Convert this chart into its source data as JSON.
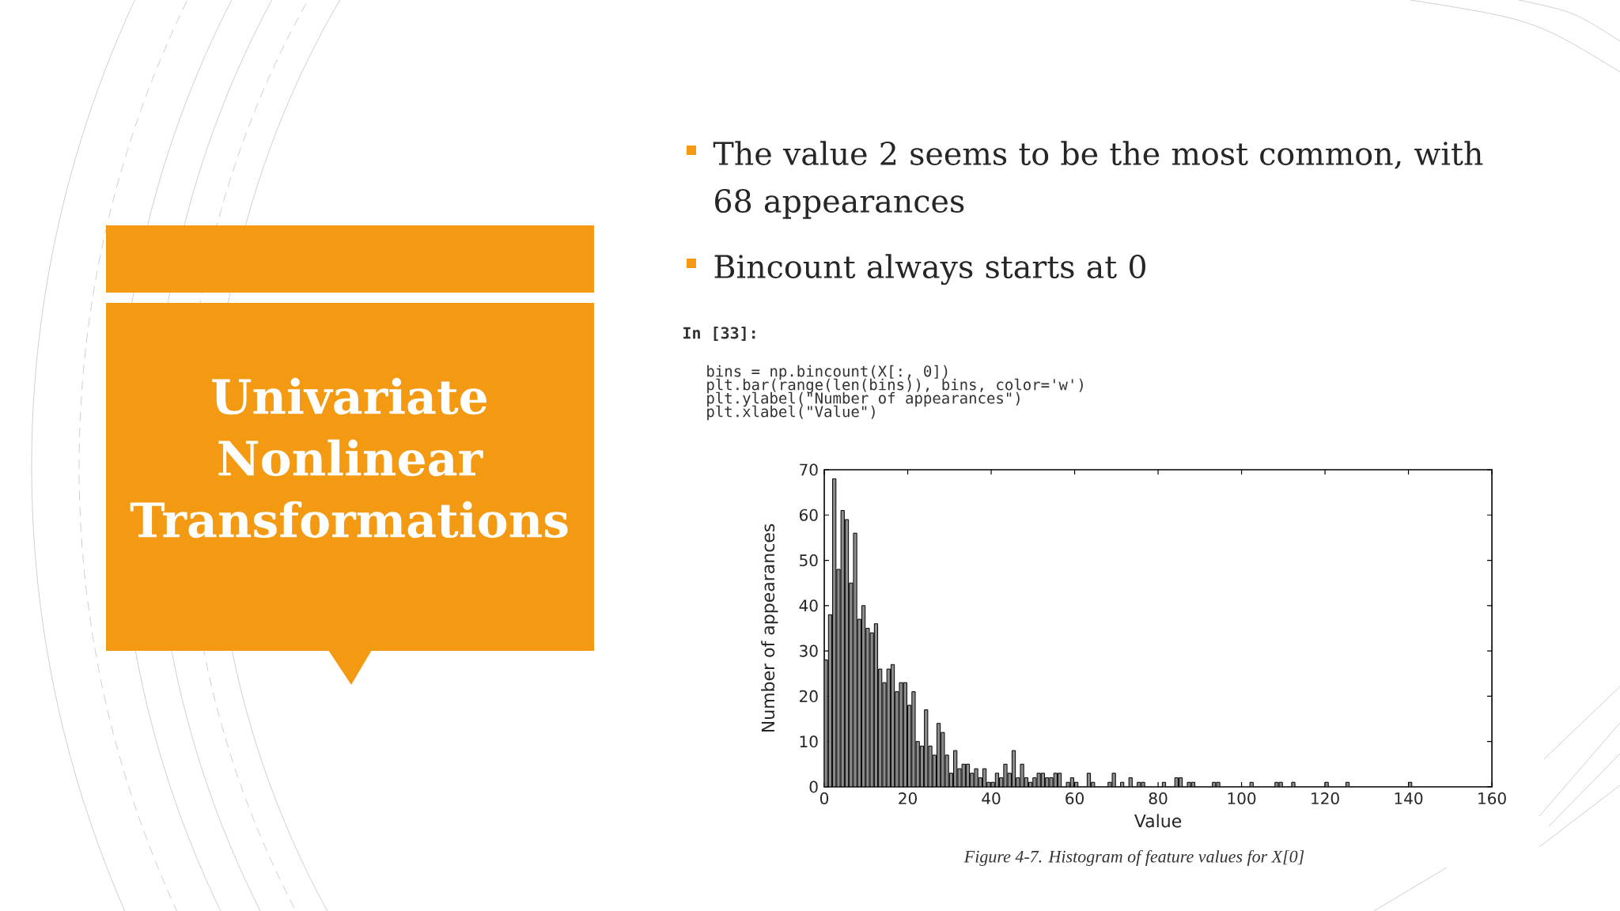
{
  "chart_data": {
    "type": "bar",
    "title": "Univariate Nonlinear Transformations",
    "xlabel": "Value",
    "ylabel": "Number of appearances",
    "color": "#8c8c8c",
    "x": [
      0,
      1,
      2,
      3,
      4,
      5,
      6,
      7,
      8,
      9,
      10,
      11,
      12,
      13,
      14,
      15,
      16,
      17,
      18,
      19,
      20,
      21,
      22,
      23,
      24,
      25,
      26,
      27,
      28,
      29,
      30,
      31,
      32,
      33,
      34,
      35,
      36,
      37,
      38,
      39,
      40,
      41,
      42,
      43,
      44,
      45,
      46,
      47,
      48,
      49,
      50,
      51,
      52,
      53,
      54,
      55,
      56,
      57,
      58,
      59,
      60,
      61,
      62,
      63,
      64,
      65,
      66,
      67,
      68,
      69,
      70,
      71,
      72,
      73,
      74,
      75,
      76,
      77,
      78,
      79,
      80,
      81,
      82,
      83,
      84,
      85,
      86,
      87,
      88,
      89,
      90,
      91,
      92,
      93,
      94,
      95,
      96,
      97,
      98,
      99,
      100,
      101,
      102,
      103,
      104,
      105,
      106,
      107,
      108,
      109,
      110,
      111,
      112,
      113,
      114,
      115,
      116,
      117,
      118,
      119,
      120,
      121,
      122,
      123,
      124,
      125,
      126,
      127,
      128,
      129,
      130,
      131,
      132,
      133,
      134,
      135,
      136,
      137,
      138,
      139,
      140
    ],
    "values": [
      28,
      38,
      68,
      48,
      61,
      59,
      45,
      56,
      37,
      40,
      35,
      34,
      36,
      26,
      23,
      26,
      27,
      21,
      23,
      23,
      18,
      21,
      10,
      9,
      17,
      9,
      7,
      14,
      12,
      7,
      3,
      8,
      4,
      5,
      5,
      3,
      4,
      2,
      4,
      1,
      1,
      3,
      2,
      5,
      3,
      8,
      2,
      5,
      2,
      1,
      2,
      3,
      3,
      2,
      2,
      3,
      3,
      0,
      1,
      2,
      1,
      0,
      0,
      3,
      1,
      0,
      0,
      0,
      1,
      3,
      0,
      1,
      0,
      2,
      0,
      1,
      1,
      0,
      0,
      0,
      0,
      1,
      0,
      0,
      2,
      2,
      0,
      1,
      1,
      0,
      0,
      0,
      0,
      1,
      1,
      0,
      0,
      0,
      0,
      0,
      0,
      0,
      1,
      0,
      0,
      0,
      0,
      0,
      1,
      1,
      0,
      0,
      1,
      0,
      0,
      0,
      0,
      0,
      0,
      0,
      1,
      0,
      0,
      0,
      0,
      1,
      0,
      0,
      0,
      0,
      0,
      0,
      0,
      0,
      0,
      0,
      0,
      0,
      0,
      0,
      1
    ],
    "xlim": [
      0,
      160
    ],
    "xticks": [
      0,
      20,
      40,
      60,
      80,
      100,
      120,
      140,
      160
    ],
    "ylim": [
      0,
      70
    ],
    "yticks": [
      0,
      10,
      20,
      30,
      40,
      50,
      60,
      70
    ],
    "annotations": [
      "The value 2 seems to be the most common, with 68 appearances",
      "Bincount always starts at 0",
      "In [33]:",
      "bins = np.bincount(X[:, 0])",
      "plt.bar(range(len(bins)), bins, color='w')",
      "plt.ylabel(\"Number of appearances\")",
      "plt.xlabel(\"Value\")",
      "Figure 4-7. Histogram of feature values for X[0]"
    ]
  }
}
